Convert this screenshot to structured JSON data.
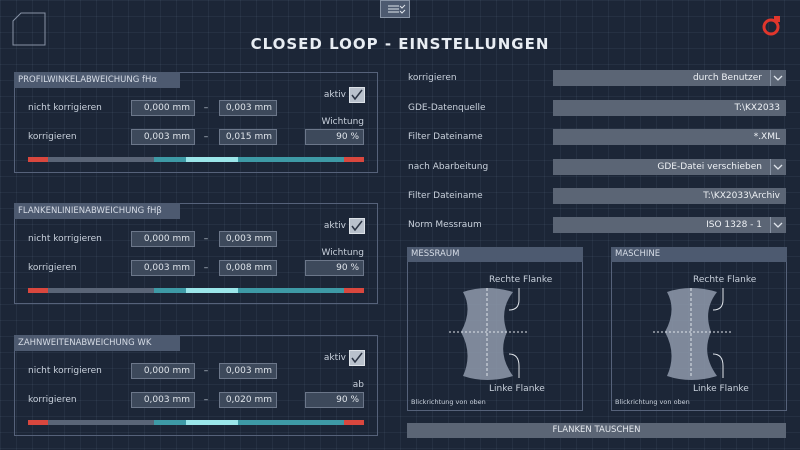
{
  "header": {
    "title": "CLOSED LOOP - EINSTELLUNGEN"
  },
  "panels": [
    {
      "title": "PROFILWINKELABWEICHUNG fHα",
      "active_label": "aktiv",
      "rows": [
        {
          "label": "nicht korrigieren",
          "from": "0,000 mm",
          "separator": "–",
          "to": "0,003 mm"
        },
        {
          "label": "korrigieren",
          "from": "0,003 mm",
          "separator": "–",
          "to": "0,015 mm"
        }
      ],
      "weight_label": "Wichtung",
      "weight": "90 %"
    },
    {
      "title": "FLANKENLINIENABWEICHUNG fHβ",
      "active_label": "aktiv",
      "rows": [
        {
          "label": "nicht korrigieren",
          "from": "0,000 mm",
          "separator": "–",
          "to": "0,003 mm"
        },
        {
          "label": "korrigieren",
          "from": "0,003 mm",
          "separator": "–",
          "to": "0,008 mm"
        }
      ],
      "weight_label": "Wichtung",
      "weight": "90 %"
    },
    {
      "title": "ZAHNWEITENABWEICHUNG WK",
      "active_label": "aktiv",
      "rows": [
        {
          "label": "nicht korrigieren",
          "from": "0,000 mm",
          "separator": "–",
          "to": "0,003 mm"
        },
        {
          "label": "korrigieren",
          "from": "0,003 mm",
          "separator": "–",
          "to": "0,020 mm"
        }
      ],
      "weight_label": "ab",
      "weight": "90 %"
    }
  ],
  "settings": [
    {
      "label": "korrigieren",
      "value": "durch Benutzer",
      "dropdown": true
    },
    {
      "label": "GDE-Datenquelle",
      "value": "T:\\KX2033",
      "dropdown": false
    },
    {
      "label": "Filter Dateiname",
      "value": "*.XML",
      "dropdown": false
    },
    {
      "label": "nach Abarbeitung",
      "value": "GDE-Datei verschieben",
      "dropdown": true
    },
    {
      "label": "Filter Dateiname",
      "value": "T:\\KX2033\\Archiv",
      "dropdown": false
    },
    {
      "label": "Norm Messraum",
      "value": "ISO 1328 - 1",
      "dropdown": true
    }
  ],
  "diagrams": [
    {
      "title": "MESSRAUM",
      "right_flank": "Rechte Flanke",
      "left_flank": "Linke Flanke",
      "note": "Blickrichtung von oben"
    },
    {
      "title": "MASCHINE",
      "right_flank": "Rechte Flanke",
      "left_flank": "Linke Flanke",
      "note": "Blickrichtung von oben"
    }
  ],
  "button": "FLANKEN TAUSCHEN"
}
